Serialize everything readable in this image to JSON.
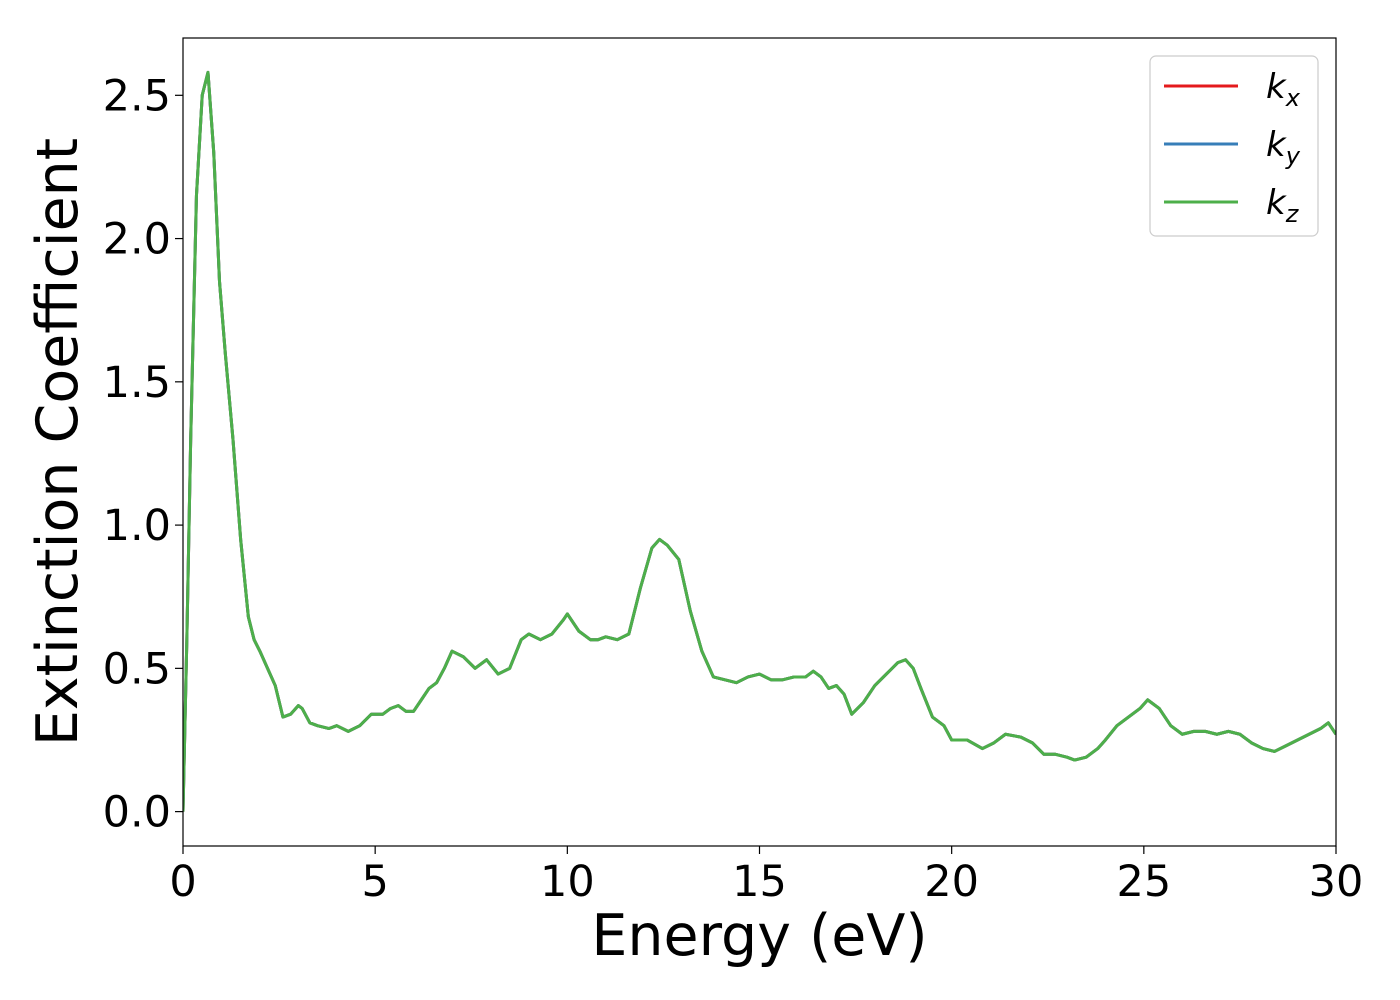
{
  "chart_data": {
    "type": "line",
    "title": "",
    "xlabel": "Energy (eV)",
    "ylabel": "Extinction Coefficient",
    "xlim": [
      0,
      30
    ],
    "ylim": [
      -0.12,
      2.7
    ],
    "xticks": [
      0,
      5,
      10,
      15,
      20,
      25,
      30
    ],
    "xtick_labels": [
      "0",
      "5",
      "10",
      "15",
      "20",
      "25",
      "30"
    ],
    "yticks": [
      0.0,
      0.5,
      1.0,
      1.5,
      2.0,
      2.5
    ],
    "ytick_labels": [
      "0.0",
      "0.5",
      "1.0",
      "1.5",
      "2.0",
      "2.5"
    ],
    "grid": false,
    "legend_position": "top-right",
    "legend": [
      {
        "base": "k",
        "sub": "x",
        "color": "#e41a1c"
      },
      {
        "base": "k",
        "sub": "y",
        "color": "#377eb8"
      },
      {
        "base": "k",
        "sub": "z",
        "color": "#4daf4a"
      }
    ],
    "x": [
      0.0,
      0.1,
      0.2,
      0.35,
      0.5,
      0.65,
      0.8,
      0.95,
      1.1,
      1.3,
      1.5,
      1.7,
      1.85,
      2.0,
      2.2,
      2.4,
      2.6,
      2.8,
      3.0,
      3.1,
      3.3,
      3.5,
      3.8,
      4.0,
      4.3,
      4.6,
      4.9,
      5.2,
      5.4,
      5.6,
      5.8,
      6.0,
      6.2,
      6.4,
      6.6,
      6.8,
      7.0,
      7.3,
      7.6,
      7.9,
      8.2,
      8.5,
      8.8,
      9.0,
      9.3,
      9.6,
      9.9,
      10.0,
      10.3,
      10.6,
      10.8,
      11.0,
      11.3,
      11.6,
      11.9,
      12.2,
      12.4,
      12.6,
      12.9,
      13.2,
      13.5,
      13.8,
      14.1,
      14.4,
      14.7,
      15.0,
      15.3,
      15.6,
      15.9,
      16.2,
      16.4,
      16.6,
      16.8,
      17.0,
      17.2,
      17.4,
      17.7,
      18.0,
      18.3,
      18.6,
      18.8,
      19.0,
      19.2,
      19.5,
      19.8,
      20.0,
      20.4,
      20.8,
      21.1,
      21.4,
      21.8,
      22.1,
      22.4,
      22.7,
      23.0,
      23.2,
      23.5,
      23.8,
      24.0,
      24.3,
      24.6,
      24.9,
      25.1,
      25.4,
      25.7,
      26.0,
      26.3,
      26.6,
      26.9,
      27.2,
      27.5,
      27.8,
      28.1,
      28.4,
      28.7,
      29.0,
      29.3,
      29.6,
      29.8,
      30.0
    ],
    "series": [
      {
        "name": "k_x",
        "color": "#e41a1c",
        "values": [
          0.0,
          0.6,
          1.3,
          2.15,
          2.5,
          2.58,
          2.3,
          1.85,
          1.6,
          1.3,
          0.95,
          0.68,
          0.6,
          0.56,
          0.5,
          0.44,
          0.33,
          0.34,
          0.37,
          0.36,
          0.31,
          0.3,
          0.29,
          0.3,
          0.28,
          0.3,
          0.34,
          0.34,
          0.36,
          0.37,
          0.35,
          0.35,
          0.39,
          0.43,
          0.45,
          0.5,
          0.56,
          0.54,
          0.5,
          0.53,
          0.48,
          0.5,
          0.6,
          0.62,
          0.6,
          0.62,
          0.67,
          0.69,
          0.63,
          0.6,
          0.6,
          0.61,
          0.6,
          0.62,
          0.78,
          0.92,
          0.95,
          0.93,
          0.88,
          0.7,
          0.56,
          0.47,
          0.46,
          0.45,
          0.47,
          0.48,
          0.46,
          0.46,
          0.47,
          0.47,
          0.49,
          0.47,
          0.43,
          0.44,
          0.41,
          0.34,
          0.38,
          0.44,
          0.48,
          0.52,
          0.53,
          0.5,
          0.43,
          0.33,
          0.3,
          0.25,
          0.25,
          0.22,
          0.24,
          0.27,
          0.26,
          0.24,
          0.2,
          0.2,
          0.19,
          0.18,
          0.19,
          0.22,
          0.25,
          0.3,
          0.33,
          0.36,
          0.39,
          0.36,
          0.3,
          0.27,
          0.28,
          0.28,
          0.27,
          0.28,
          0.27,
          0.24,
          0.22,
          0.21,
          0.23,
          0.25,
          0.27,
          0.29,
          0.31,
          0.27
        ]
      },
      {
        "name": "k_y",
        "color": "#377eb8",
        "values": [
          0.0,
          0.6,
          1.3,
          2.15,
          2.5,
          2.58,
          2.3,
          1.85,
          1.6,
          1.3,
          0.95,
          0.68,
          0.6,
          0.56,
          0.5,
          0.44,
          0.33,
          0.34,
          0.37,
          0.36,
          0.31,
          0.3,
          0.29,
          0.3,
          0.28,
          0.3,
          0.34,
          0.34,
          0.36,
          0.37,
          0.35,
          0.35,
          0.39,
          0.43,
          0.45,
          0.5,
          0.56,
          0.54,
          0.5,
          0.53,
          0.48,
          0.5,
          0.6,
          0.62,
          0.6,
          0.62,
          0.67,
          0.69,
          0.63,
          0.6,
          0.6,
          0.61,
          0.6,
          0.62,
          0.78,
          0.92,
          0.95,
          0.93,
          0.88,
          0.7,
          0.56,
          0.47,
          0.46,
          0.45,
          0.47,
          0.48,
          0.46,
          0.46,
          0.47,
          0.47,
          0.49,
          0.47,
          0.43,
          0.44,
          0.41,
          0.34,
          0.38,
          0.44,
          0.48,
          0.52,
          0.53,
          0.5,
          0.43,
          0.33,
          0.3,
          0.25,
          0.25,
          0.22,
          0.24,
          0.27,
          0.26,
          0.24,
          0.2,
          0.2,
          0.19,
          0.18,
          0.19,
          0.22,
          0.25,
          0.3,
          0.33,
          0.36,
          0.39,
          0.36,
          0.3,
          0.27,
          0.28,
          0.28,
          0.27,
          0.28,
          0.27,
          0.24,
          0.22,
          0.21,
          0.23,
          0.25,
          0.27,
          0.29,
          0.31,
          0.27
        ]
      },
      {
        "name": "k_z",
        "color": "#4daf4a",
        "values": [
          0.0,
          0.6,
          1.3,
          2.15,
          2.5,
          2.58,
          2.3,
          1.85,
          1.6,
          1.3,
          0.95,
          0.68,
          0.6,
          0.56,
          0.5,
          0.44,
          0.33,
          0.34,
          0.37,
          0.36,
          0.31,
          0.3,
          0.29,
          0.3,
          0.28,
          0.3,
          0.34,
          0.34,
          0.36,
          0.37,
          0.35,
          0.35,
          0.39,
          0.43,
          0.45,
          0.5,
          0.56,
          0.54,
          0.5,
          0.53,
          0.48,
          0.5,
          0.6,
          0.62,
          0.6,
          0.62,
          0.67,
          0.69,
          0.63,
          0.6,
          0.6,
          0.61,
          0.6,
          0.62,
          0.78,
          0.92,
          0.95,
          0.93,
          0.88,
          0.7,
          0.56,
          0.47,
          0.46,
          0.45,
          0.47,
          0.48,
          0.46,
          0.46,
          0.47,
          0.47,
          0.49,
          0.47,
          0.43,
          0.44,
          0.41,
          0.34,
          0.38,
          0.44,
          0.48,
          0.52,
          0.53,
          0.5,
          0.43,
          0.33,
          0.3,
          0.25,
          0.25,
          0.22,
          0.24,
          0.27,
          0.26,
          0.24,
          0.2,
          0.2,
          0.19,
          0.18,
          0.19,
          0.22,
          0.25,
          0.3,
          0.33,
          0.36,
          0.39,
          0.36,
          0.3,
          0.27,
          0.28,
          0.28,
          0.27,
          0.28,
          0.27,
          0.24,
          0.22,
          0.21,
          0.23,
          0.25,
          0.27,
          0.29,
          0.31,
          0.27
        ]
      }
    ]
  }
}
